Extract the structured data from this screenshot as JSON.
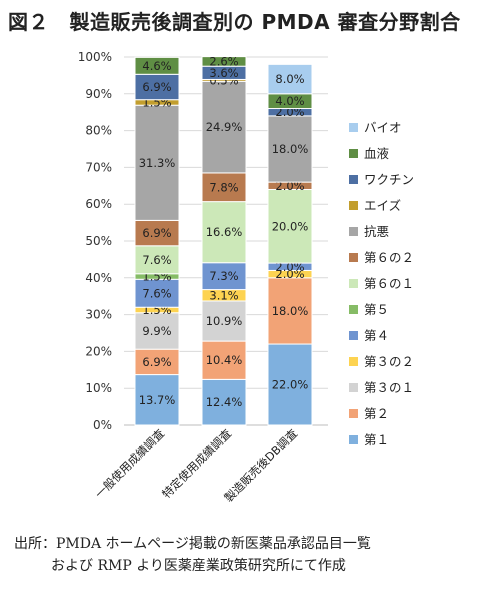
{
  "title": "図２　製造販売後調査別の PMDA 審査分野割合",
  "source": {
    "line1": "出所：PMDA ホームページ掲載の新医薬品承認品目一覧",
    "line2": "および RMP より医薬産業政策研究所にて作成"
  },
  "chart_data": {
    "type": "bar",
    "stacked": true,
    "percent": true,
    "categories": [
      "一般使用成績調査",
      "特定使用成績調査",
      "製造販売後DB調査"
    ],
    "ylim": [
      0,
      100
    ],
    "yticks": [
      "0%",
      "10%",
      "20%",
      "30%",
      "40%",
      "50%",
      "60%",
      "70%",
      "80%",
      "90%",
      "100%"
    ],
    "legend_position": "right",
    "grid": true,
    "series": [
      {
        "name": "第１",
        "color": "#7fb0de",
        "values": [
          13.7,
          12.4,
          22.0
        ],
        "labels": [
          "13.7%",
          "12.4%",
          "22.0%"
        ]
      },
      {
        "name": "第２",
        "color": "#f2a376",
        "values": [
          6.9,
          10.4,
          18.0
        ],
        "labels": [
          "6.9%",
          "10.4%",
          "18.0%"
        ]
      },
      {
        "name": "第３の１",
        "color": "#d3d3d3",
        "values": [
          9.9,
          10.9,
          0
        ],
        "labels": [
          "9.9%",
          "10.9%",
          ""
        ]
      },
      {
        "name": "第３の２",
        "color": "#fdd351",
        "values": [
          1.5,
          3.1,
          2.0
        ],
        "labels": [
          "1.5%",
          "3.1%",
          "2.0%"
        ]
      },
      {
        "name": "第４",
        "color": "#6f94d0",
        "values": [
          7.6,
          7.3,
          2.0
        ],
        "labels": [
          "7.6%",
          "7.3%",
          "2.0%"
        ]
      },
      {
        "name": "第５",
        "color": "#86bc66",
        "values": [
          1.5,
          0,
          0
        ],
        "labels": [
          "1.5%",
          "",
          ""
        ]
      },
      {
        "name": "第６の１",
        "color": "#cce8b8",
        "values": [
          7.6,
          16.6,
          20.0
        ],
        "labels": [
          "7.6%",
          "16.6%",
          "20.0%"
        ]
      },
      {
        "name": "第６の２",
        "color": "#b87a4f",
        "values": [
          6.9,
          7.8,
          2.0
        ],
        "labels": [
          "6.9%",
          "7.8%",
          "2.0%"
        ]
      },
      {
        "name": "抗悪",
        "color": "#a6a6a6",
        "values": [
          31.3,
          24.9,
          18.0
        ],
        "labels": [
          "31.3%",
          "24.9%",
          "18.0%"
        ]
      },
      {
        "name": "エイズ",
        "color": "#c29e2e",
        "values": [
          1.5,
          0.5,
          0
        ],
        "labels": [
          "1.5%",
          "0.5%",
          ""
        ]
      },
      {
        "name": "ワクチン",
        "color": "#4d6fa3",
        "values": [
          6.9,
          3.6,
          2.0
        ],
        "labels": [
          "6.9%",
          "3.6%",
          "2.0%"
        ]
      },
      {
        "name": "血液",
        "color": "#5f8e44",
        "values": [
          4.6,
          2.6,
          4.0
        ],
        "labels": [
          "4.6%",
          "2.6%",
          "4.0%"
        ]
      },
      {
        "name": "バイオ",
        "color": "#a8cdee",
        "values": [
          0,
          0,
          8.0
        ],
        "labels": [
          "",
          "",
          "8.0%"
        ]
      }
    ]
  }
}
